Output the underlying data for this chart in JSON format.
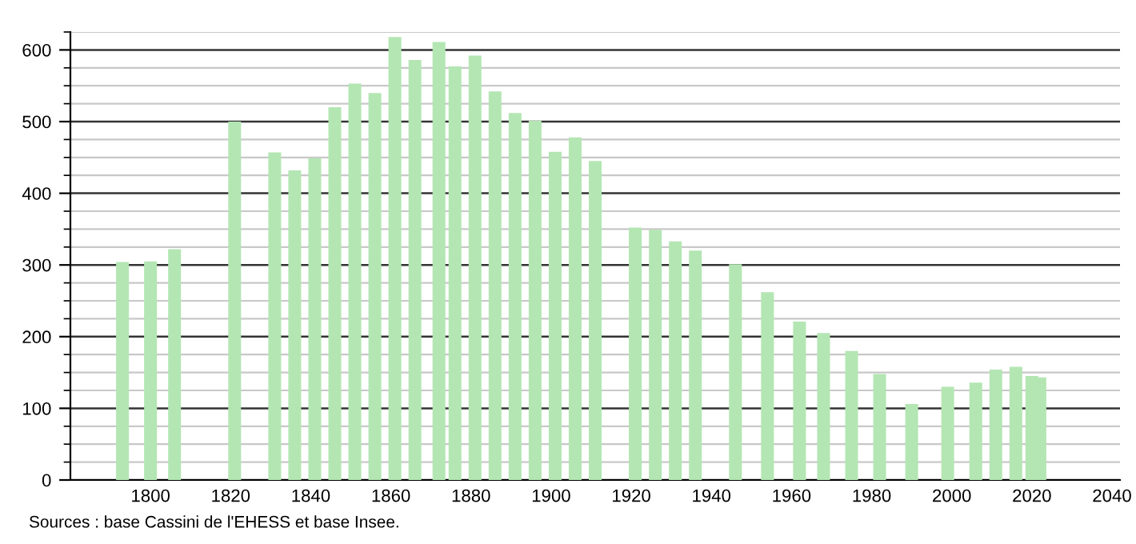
{
  "chart_data": {
    "type": "bar",
    "color": "#b3e6b3",
    "x": [
      1793,
      1800,
      1806,
      1821,
      1831,
      1836,
      1841,
      1846,
      1851,
      1856,
      1861,
      1866,
      1872,
      1876,
      1881,
      1886,
      1891,
      1896,
      1901,
      1906,
      1911,
      1921,
      1926,
      1931,
      1936,
      1946,
      1954,
      1962,
      1968,
      1975,
      1982,
      1990,
      1999,
      2006,
      2011,
      2016,
      2020,
      2022
    ],
    "values": [
      304,
      305,
      322,
      500,
      457,
      432,
      449,
      520,
      553,
      540,
      618,
      586,
      611,
      577,
      592,
      542,
      512,
      501,
      458,
      478,
      445,
      352,
      349,
      333,
      320,
      301,
      262,
      221,
      205,
      180,
      148,
      106,
      130,
      136,
      154,
      158,
      145,
      143
    ],
    "xlim": [
      1780,
      2042
    ],
    "xticks": [
      1800,
      1820,
      1840,
      1860,
      1880,
      1900,
      1920,
      1940,
      1960,
      1980,
      2000,
      2020,
      2040
    ],
    "ylim": [
      0,
      625
    ],
    "yticks": [
      0,
      100,
      200,
      300,
      400,
      500,
      600
    ],
    "grid": "y",
    "annotations": [
      "Sources : base Cassini de l'EHESS et base Insee."
    ]
  }
}
